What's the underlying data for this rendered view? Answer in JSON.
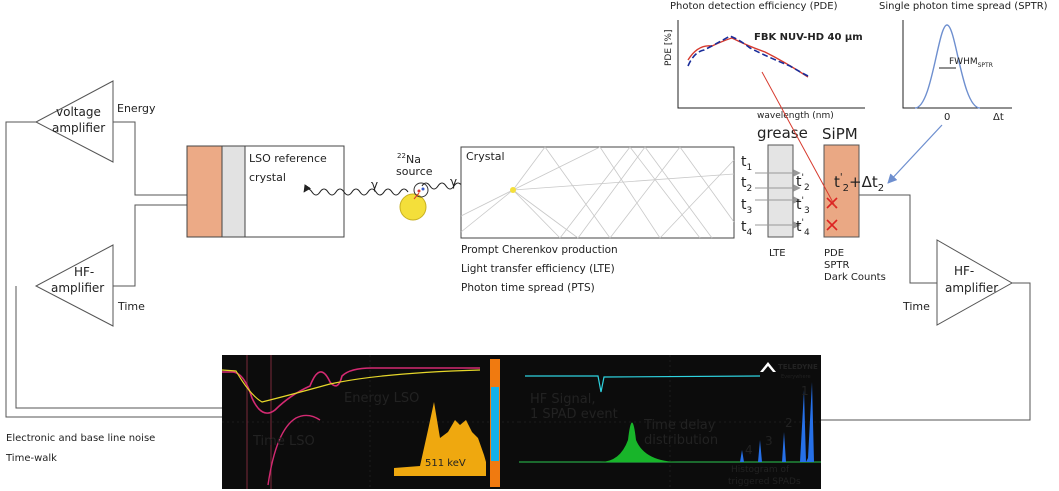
{
  "colors": {
    "lso_orange": "#ecaa86",
    "lso_gray": "#e2e2e2",
    "sipm_fill": "#eaa884",
    "source_yellow": "#f4df3a",
    "scope_bg": "#0c0c0c",
    "fbk_blue": "#1a2d9a",
    "fit_red": "#d73a2e",
    "sptr_blue": "#6e8fcf"
  },
  "labels": {
    "voltage_amplifier_1": "voltage",
    "voltage_amplifier_2": "amplifier",
    "energy": "Energy",
    "hf_amplifier_1": "HF-",
    "hf_amplifier_2": "amplifier",
    "time_left": "Time",
    "hf_amplifier_right_1": "HF-",
    "hf_amplifier_right_2": "amplifier",
    "time_right": "Time",
    "lso_1": "LSO reference",
    "lso_2": "crystal",
    "source_superscript": "22",
    "source_element": "Na",
    "source_word": "source",
    "gamma": "γ",
    "crystal": "Crystal",
    "cherenkov": "Prompt Cherenkov production",
    "lte_line": "Light transfer efficiency (LTE)",
    "pts_line": "Photon time spread (PTS)",
    "grease": "grease",
    "sipm": "SiPM",
    "lte": "LTE",
    "pde_prop": "PDE",
    "sptr_prop": "SPTR",
    "dark_counts": "Dark Counts",
    "pde_title": "Photon detection efficiency (PDE)",
    "sptr_title": "Single photon time spread (SPTR)",
    "fbk": "FBK NUV-HD 40 µm",
    "pde_axis": "PDE [%]",
    "wavelength_axis": "wavelength (nm)",
    "fwhm_main": "FWHM",
    "fwhm_sub": "SPTR",
    "sptr_zero": "0",
    "delta_t": "Δt",
    "t": "t",
    "sub1": "1",
    "sub2": "2",
    "sub3": "3",
    "sub4": "4",
    "prime": "'",
    "plus_delta": "+Δt",
    "noise_1": "Electronic and base line noise",
    "noise_2": "Time-walk"
  },
  "scope": {
    "energy_lso": "Energy LSO",
    "time_lso": "Time LSO",
    "kev": "511 keV",
    "hf_signal_1": "HF Signal,",
    "hf_signal_2": "1 SPAD event",
    "time_delay_1": "Time delay",
    "time_delay_2": "distribution",
    "hist_1": "Histogram of",
    "hist_2": "triggered SPADs",
    "brand": "TELEDYNE",
    "brand_sub": "Everywhere",
    "peak_1": "1",
    "peak_2": "2",
    "peak_3": "3",
    "peak_4": "4"
  }
}
